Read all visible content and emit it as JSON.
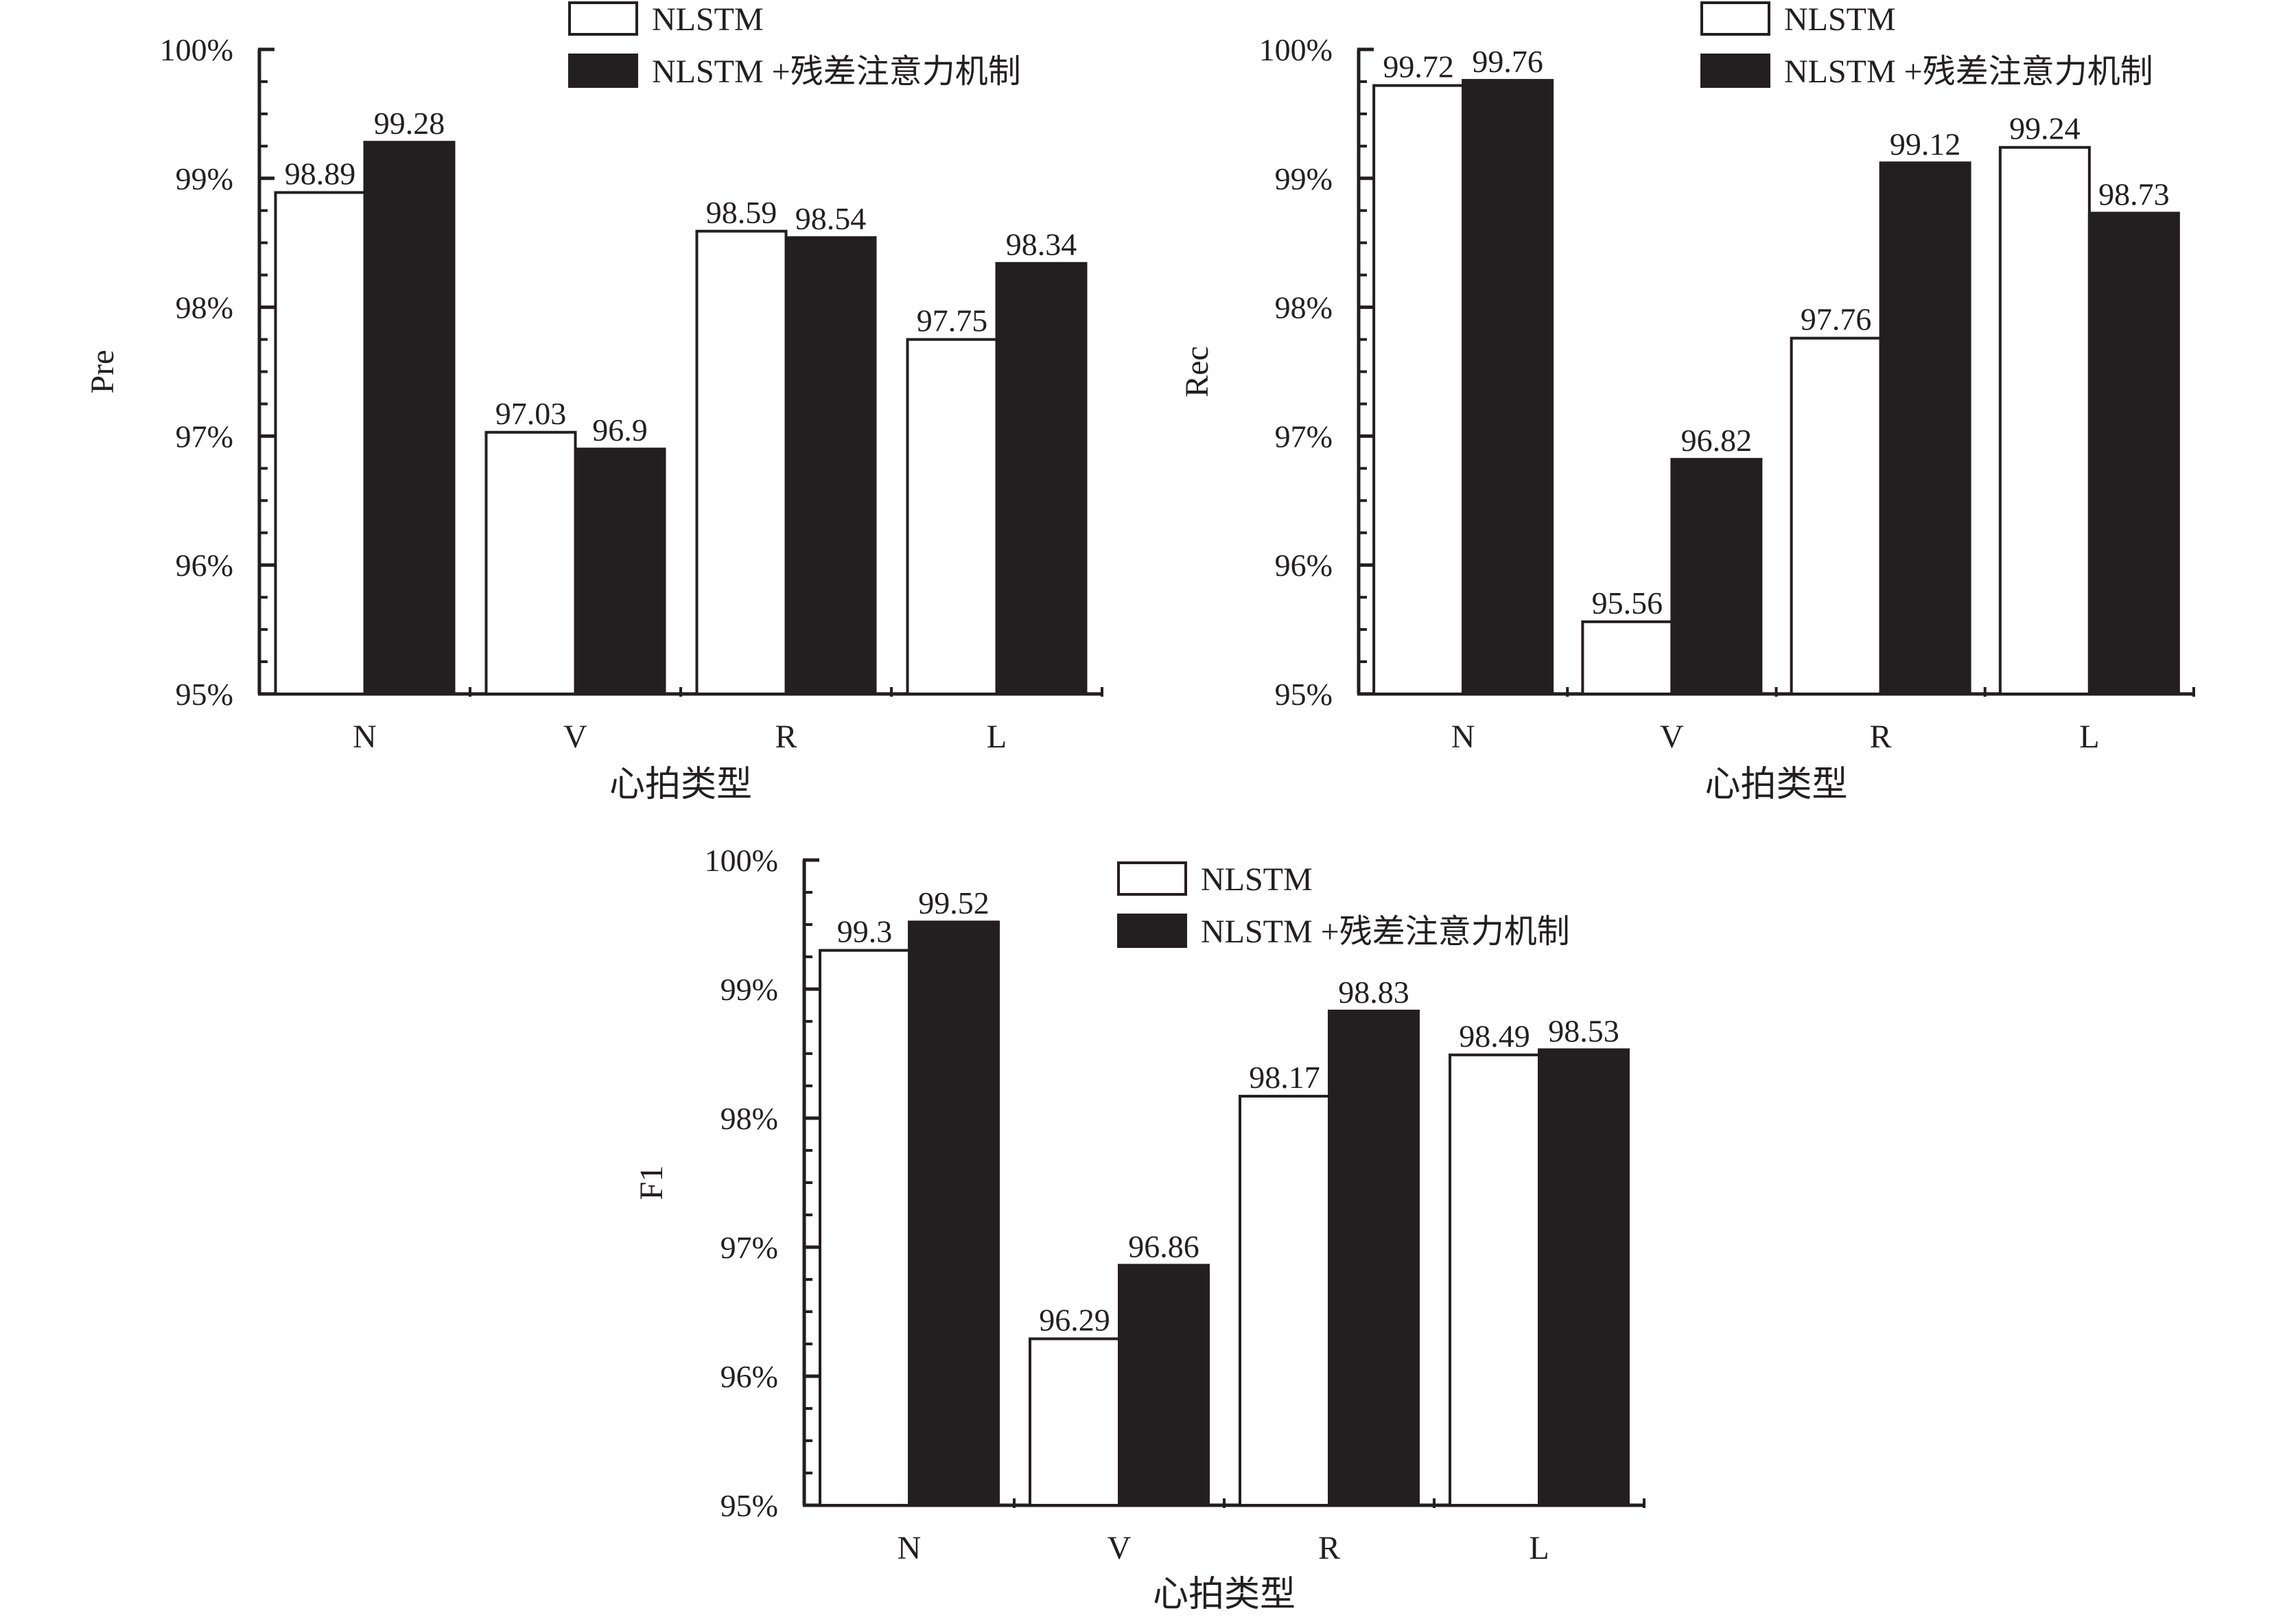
{
  "colors": {
    "series1": "#ffffff",
    "series2": "#231f20",
    "stroke": "#231f20",
    "background": "#ffffff"
  },
  "chart_data": [
    {
      "type": "bar",
      "ylabel": "Pre",
      "xlabel": "心拍类型",
      "categories": [
        "N",
        "V",
        "R",
        "L"
      ],
      "ylim": [
        95,
        100
      ],
      "yticks": [
        95,
        96,
        97,
        98,
        99,
        100
      ],
      "ytick_labels": [
        "95%",
        "96%",
        "97%",
        "98%",
        "99%",
        "100%"
      ],
      "legend": "top-right",
      "grid": false,
      "series": [
        {
          "name": "NLSTM",
          "values": [
            98.89,
            97.03,
            98.59,
            97.75
          ],
          "labels": [
            "98.89",
            "97.03",
            "98.59",
            "97.75"
          ]
        },
        {
          "name": "NLSTM +残差注意力机制",
          "values": [
            99.28,
            96.9,
            98.54,
            98.34
          ],
          "labels": [
            "99.28",
            "96.9",
            "98.54",
            "98.34"
          ]
        }
      ]
    },
    {
      "type": "bar",
      "ylabel": "Rec",
      "xlabel": "心拍类型",
      "categories": [
        "N",
        "V",
        "R",
        "L"
      ],
      "ylim": [
        95,
        100
      ],
      "yticks": [
        95,
        96,
        97,
        98,
        99,
        100
      ],
      "ytick_labels": [
        "95%",
        "96%",
        "97%",
        "98%",
        "99%",
        "100%"
      ],
      "legend": "top-right",
      "grid": false,
      "series": [
        {
          "name": "NLSTM",
          "values": [
            99.72,
            95.56,
            97.76,
            99.24
          ],
          "labels": [
            "99.72",
            "95.56",
            "97.76",
            "99.24"
          ]
        },
        {
          "name": "NLSTM +残差注意力机制",
          "values": [
            99.76,
            96.82,
            99.12,
            98.73
          ],
          "labels": [
            "99.76",
            "96.82",
            "99.12",
            "98.73"
          ]
        }
      ]
    },
    {
      "type": "bar",
      "ylabel": "F1",
      "xlabel": "心拍类型",
      "categories": [
        "N",
        "V",
        "R",
        "L"
      ],
      "ylim": [
        95,
        100
      ],
      "yticks": [
        95,
        96,
        97,
        98,
        99,
        100
      ],
      "ytick_labels": [
        "95%",
        "96%",
        "97%",
        "98%",
        "99%",
        "100%"
      ],
      "legend": "top-right",
      "grid": false,
      "series": [
        {
          "name": "NLSTM",
          "values": [
            99.3,
            96.29,
            98.17,
            98.49
          ],
          "labels": [
            "99.3",
            "96.29",
            "98.17",
            "98.49"
          ]
        },
        {
          "name": "NLSTM +残差注意力机制",
          "values": [
            99.52,
            96.86,
            98.83,
            98.53
          ],
          "labels": [
            "99.52",
            "96.86",
            "98.83",
            "98.53"
          ]
        }
      ]
    }
  ]
}
